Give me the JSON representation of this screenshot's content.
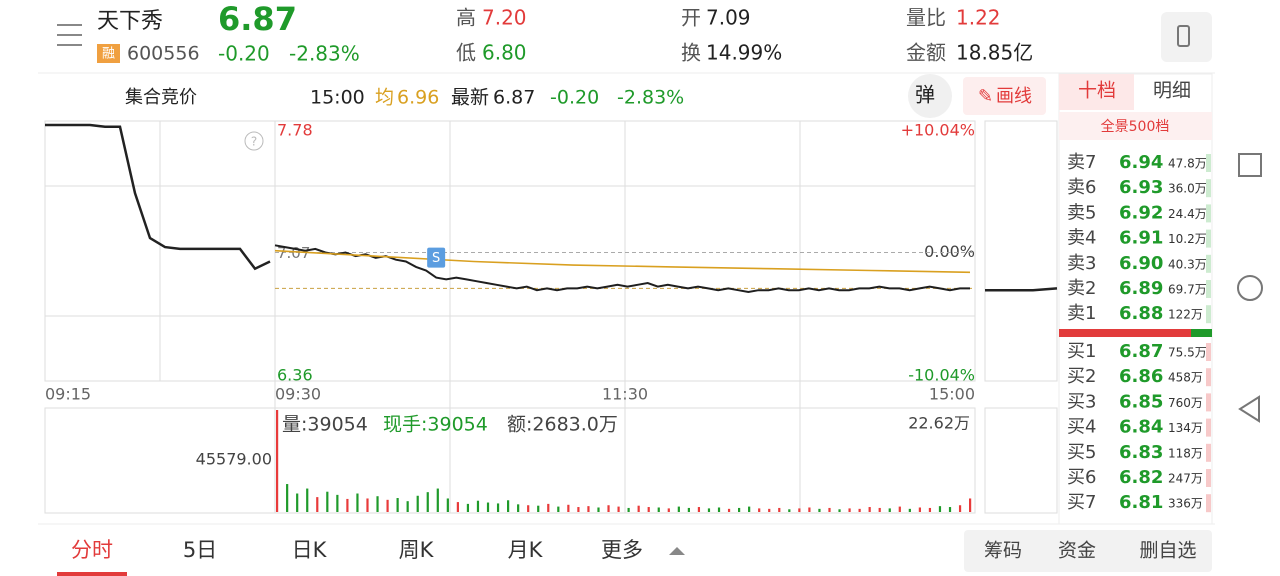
{
  "header": {
    "name": "天下秀",
    "price": "6.87",
    "tag": "融",
    "code": "600556",
    "change": "-0.20",
    "pct": "-2.83%",
    "high_label": "高",
    "high": "7.20",
    "low_label": "低",
    "low": "6.80",
    "open_label": "开",
    "open": "7.09",
    "turnover_label": "换",
    "turnover": "14.99%",
    "ratio_label": "量比",
    "ratio": "1.22",
    "amount_label": "金额",
    "amount": "18.85亿"
  },
  "bar": {
    "auction": "集合竞价",
    "time": "15:00",
    "avg_label": "均",
    "avg": "6.96",
    "latest_label": "最新",
    "latest": "6.87",
    "change": "-0.20",
    "pct": "-2.83%",
    "pop": "弹",
    "draw": "画线"
  },
  "chart_data": {
    "type": "line",
    "ylim": [
      6.36,
      7.78
    ],
    "yticks": [
      7.78,
      6.36
    ],
    "prev_close": 7.07,
    "pct_labels": [
      "+10.04%",
      "0.00%",
      "-10.04%"
    ],
    "time_labels": [
      "09:15",
      "09:30",
      "11:30",
      "15:00"
    ],
    "marker": "S",
    "auction": {
      "color": "#222222",
      "values": [
        7.78,
        7.78,
        7.78,
        7.78,
        7.77,
        7.77,
        7.4,
        7.15,
        7.1,
        7.09,
        7.09,
        7.09,
        7.09,
        7.09,
        6.98,
        7.02
      ]
    },
    "series": [
      {
        "color": "#1f1f1f",
        "values": [
          7.11,
          7.1,
          7.09,
          7.08,
          7.09,
          7.07,
          7.06,
          7.07,
          7.05,
          7.06,
          7.04,
          7.05,
          7.03,
          7.02,
          6.99,
          6.97,
          6.93,
          6.92,
          6.93,
          6.92,
          6.91,
          6.9,
          6.89,
          6.88,
          6.87,
          6.88,
          6.86,
          6.87,
          6.86,
          6.87,
          6.87,
          6.88,
          6.87,
          6.88,
          6.89,
          6.88,
          6.89,
          6.9,
          6.88,
          6.89,
          6.88,
          6.87,
          6.88,
          6.87,
          6.86,
          6.87,
          6.86,
          6.85,
          6.86,
          6.86,
          6.87,
          6.86,
          6.86,
          6.87,
          6.86,
          6.87,
          6.86,
          6.86,
          6.87,
          6.87,
          6.88,
          6.87,
          6.87,
          6.86,
          6.87,
          6.88,
          6.87,
          6.86,
          6.87,
          6.87
        ]
      },
      {
        "color": "#d9a020",
        "values": [
          7.08,
          7.05,
          7.02,
          7.0,
          6.99,
          6.98,
          6.97,
          6.96
        ]
      }
    ],
    "after_hours": {
      "color": "#222222",
      "values": [
        6.86,
        6.86,
        6.86,
        6.87
      ]
    },
    "volume": {
      "label": "量:39054",
      "hand": "现手:39054",
      "amount": "额:2683.0万",
      "max_label": "22.62万",
      "auction_label": "45579.00",
      "vlim": [
        0,
        226200
      ],
      "up_color": "#e83a3a",
      "down_color": "#1f9a2a",
      "values": [
        226200,
        62000,
        41000,
        52000,
        33000,
        45000,
        38000,
        29000,
        41000,
        30000,
        35000,
        27000,
        31000,
        24000,
        36000,
        44000,
        52000,
        30000,
        22000,
        18000,
        25000,
        21000,
        19000,
        26000,
        17000,
        15000,
        14000,
        18000,
        12000,
        16000,
        11000,
        13000,
        10000,
        15000,
        12000,
        9000,
        14000,
        11000,
        10000,
        8000,
        12000,
        9000,
        11000,
        8000,
        10000,
        7000,
        9000,
        12000,
        8000,
        7000,
        9000,
        6000,
        8000,
        10000,
        7000,
        9000,
        6000,
        8000,
        7000,
        11000,
        9000,
        8000,
        12000,
        7000,
        10000,
        9000,
        13000,
        11000,
        15000,
        30000
      ]
    }
  },
  "order_book": {
    "tabs": [
      "十档",
      "明细"
    ],
    "depth": "全景500档",
    "sells": [
      {
        "label": "卖7",
        "price": "6.94",
        "vol": "47.8万"
      },
      {
        "label": "卖6",
        "price": "6.93",
        "vol": "36.0万"
      },
      {
        "label": "卖5",
        "price": "6.92",
        "vol": "24.4万"
      },
      {
        "label": "卖4",
        "price": "6.91",
        "vol": "10.2万"
      },
      {
        "label": "卖3",
        "price": "6.90",
        "vol": "40.3万"
      },
      {
        "label": "卖2",
        "price": "6.89",
        "vol": "69.7万"
      },
      {
        "label": "卖1",
        "price": "6.88",
        "vol": "122万"
      }
    ],
    "buys": [
      {
        "label": "买1",
        "price": "6.87",
        "vol": "75.5万"
      },
      {
        "label": "买2",
        "price": "6.86",
        "vol": "458万"
      },
      {
        "label": "买3",
        "price": "6.85",
        "vol": "760万"
      },
      {
        "label": "买4",
        "price": "6.84",
        "vol": "134万"
      },
      {
        "label": "买5",
        "price": "6.83",
        "vol": "118万"
      },
      {
        "label": "买6",
        "price": "6.82",
        "vol": "247万"
      },
      {
        "label": "买7",
        "price": "6.81",
        "vol": "336万"
      }
    ]
  },
  "tabs": [
    "分时",
    "5日",
    "日K",
    "周K",
    "月K",
    "更多"
  ],
  "buttons": [
    "筹码",
    "资金",
    "删自选"
  ]
}
